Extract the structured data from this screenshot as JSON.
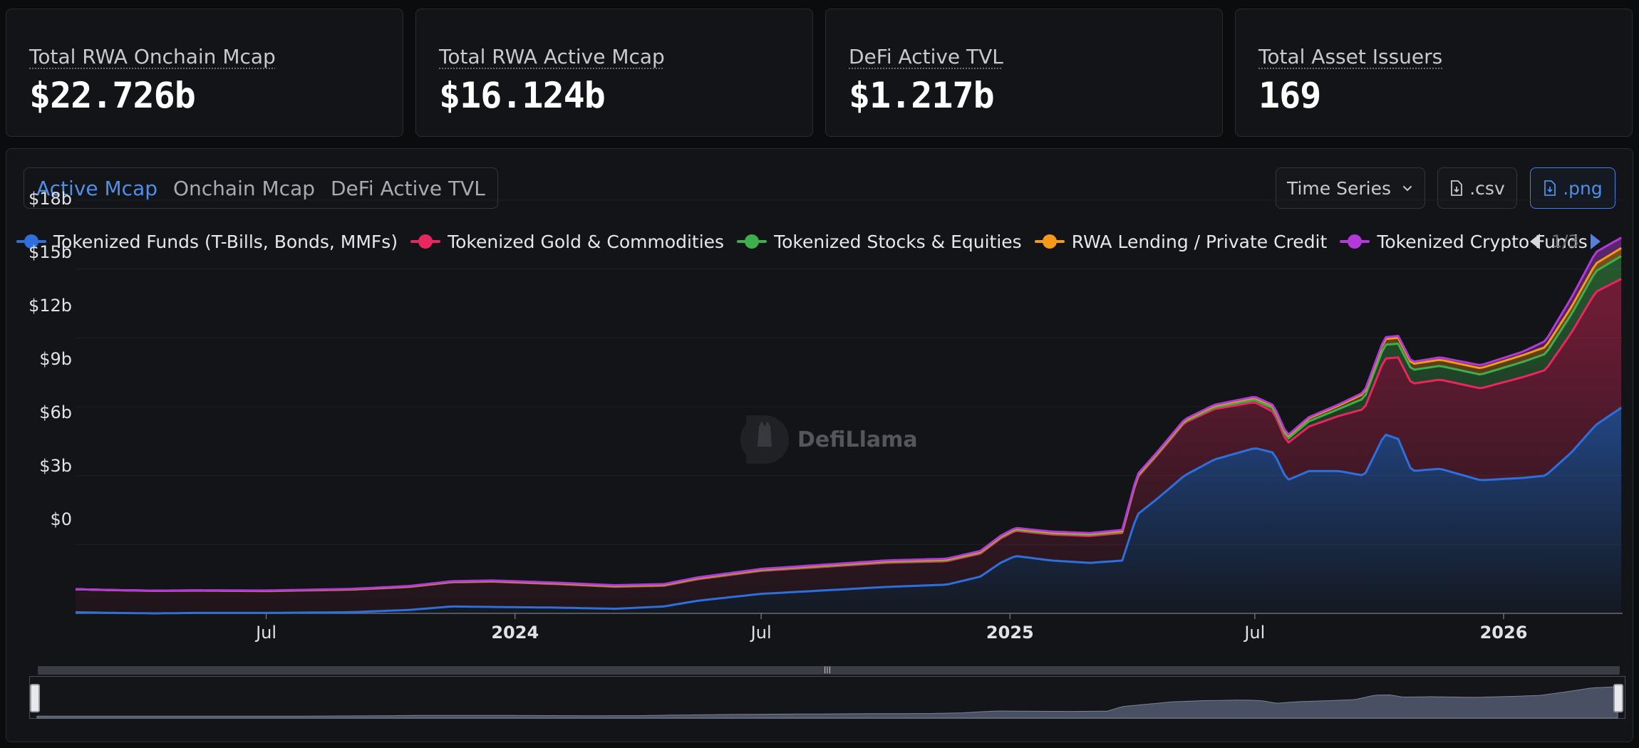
{
  "stats": [
    {
      "label": "Total RWA Onchain Mcap",
      "value": "$22.726b"
    },
    {
      "label": "Total RWA Active Mcap",
      "value": "$16.124b"
    },
    {
      "label": "DeFi Active TVL",
      "value": "$1.217b"
    },
    {
      "label": "Total Asset Issuers",
      "value": "169"
    }
  ],
  "tabs": [
    {
      "label": "Active Mcap",
      "active": true
    },
    {
      "label": "Onchain Mcap",
      "active": false
    },
    {
      "label": "DeFi Active TVL",
      "active": false
    }
  ],
  "controls": {
    "view_select": "Time Series",
    "csv_label": ".csv",
    "png_label": ".png"
  },
  "legend": {
    "items": [
      {
        "label": "Tokenized Funds (T-Bills, Bonds, MMFs)",
        "color": "#2f6fdc"
      },
      {
        "label": "Tokenized Gold & Commodities",
        "color": "#e8275f"
      },
      {
        "label": "Tokenized Stocks & Equities",
        "color": "#3fae4d"
      },
      {
        "label": "RWA Lending / Private Credit",
        "color": "#f59a18"
      },
      {
        "label": "Tokenized Crypto Funds",
        "color": "#b33ad8"
      }
    ],
    "page": "1/3"
  },
  "watermark": "DefiLlama",
  "chart_data": {
    "type": "area",
    "stacked": true,
    "y_ticks": [
      "$18b",
      "$15b",
      "$12b",
      "$9b",
      "$6b",
      "$3b",
      "$0"
    ],
    "ylim": [
      0,
      18
    ],
    "y_unit": "billion USD",
    "x_ticks": [
      {
        "label": "Jul",
        "date": "2023-07-01",
        "bold": false
      },
      {
        "label": "2024",
        "date": "2024-01-01",
        "bold": true
      },
      {
        "label": "Jul",
        "date": "2024-07-01",
        "bold": false
      },
      {
        "label": "2025",
        "date": "2025-01-01",
        "bold": true
      },
      {
        "label": "Jul",
        "date": "2025-07-01",
        "bold": false
      },
      {
        "label": "2026",
        "date": "2026-01-01",
        "bold": true
      }
    ],
    "xlim": [
      "2023-02-10",
      "2026-03-30"
    ],
    "grid": true,
    "legend_position": "top",
    "series": [
      {
        "name": "Tokenized Funds (T-Bills, Bonds, MMFs)",
        "color": "#2f6fdc",
        "points": [
          [
            "2023-02-10",
            0.05
          ],
          [
            "2023-03-10",
            0.02
          ],
          [
            "2023-04-10",
            0.0
          ],
          [
            "2023-05-10",
            0.02
          ],
          [
            "2023-07-01",
            0.02
          ],
          [
            "2023-09-01",
            0.05
          ],
          [
            "2023-10-15",
            0.15
          ],
          [
            "2023-11-15",
            0.3
          ],
          [
            "2023-12-15",
            0.28
          ],
          [
            "2024-02-01",
            0.25
          ],
          [
            "2024-03-15",
            0.2
          ],
          [
            "2024-04-20",
            0.3
          ],
          [
            "2024-05-15",
            0.55
          ],
          [
            "2024-07-01",
            0.85
          ],
          [
            "2024-08-01",
            0.95
          ],
          [
            "2024-09-01",
            1.05
          ],
          [
            "2024-10-01",
            1.15
          ],
          [
            "2024-11-15",
            1.25
          ],
          [
            "2024-12-10",
            1.6
          ],
          [
            "2024-12-25",
            2.2
          ],
          [
            "2025-01-05",
            2.5
          ],
          [
            "2025-02-01",
            2.3
          ],
          [
            "2025-03-01",
            2.2
          ],
          [
            "2025-03-25",
            2.3
          ],
          [
            "2025-04-05",
            4.3
          ],
          [
            "2025-04-20",
            5.0
          ],
          [
            "2025-05-10",
            6.0
          ],
          [
            "2025-06-01",
            6.7
          ],
          [
            "2025-07-01",
            7.2
          ],
          [
            "2025-07-15",
            7.0
          ],
          [
            "2025-07-25",
            5.8
          ],
          [
            "2025-08-10",
            6.2
          ],
          [
            "2025-09-01",
            6.2
          ],
          [
            "2025-09-20",
            6.0
          ],
          [
            "2025-10-05",
            7.8
          ],
          [
            "2025-10-15",
            7.6
          ],
          [
            "2025-10-25",
            6.2
          ],
          [
            "2025-11-15",
            6.3
          ],
          [
            "2025-12-15",
            5.8
          ],
          [
            "2026-01-15",
            5.9
          ],
          [
            "2026-02-01",
            6.0
          ],
          [
            "2026-02-20",
            7.0
          ],
          [
            "2026-03-10",
            8.2
          ],
          [
            "2026-03-30",
            9.0
          ]
        ]
      },
      {
        "name": "Tokenized Gold & Commodities",
        "color": "#e8275f",
        "points": [
          [
            "2023-02-10",
            1.0
          ],
          [
            "2023-07-01",
            0.95
          ],
          [
            "2023-10-15",
            1.0
          ],
          [
            "2023-12-15",
            1.1
          ],
          [
            "2024-04-20",
            0.9
          ],
          [
            "2024-07-01",
            1.0
          ],
          [
            "2024-10-01",
            1.05
          ],
          [
            "2024-12-10",
            1.0
          ],
          [
            "2025-01-05",
            1.1
          ],
          [
            "2025-03-25",
            1.2
          ],
          [
            "2025-04-05",
            1.6
          ],
          [
            "2025-05-10",
            2.3
          ],
          [
            "2025-06-01",
            2.2
          ],
          [
            "2025-07-01",
            2.0
          ],
          [
            "2025-07-25",
            1.6
          ],
          [
            "2025-09-01",
            2.4
          ],
          [
            "2025-10-05",
            3.3
          ],
          [
            "2025-10-25",
            3.8
          ],
          [
            "2025-12-15",
            4.0
          ],
          [
            "2026-02-01",
            4.6
          ],
          [
            "2026-03-10",
            5.8
          ],
          [
            "2026-03-30",
            5.6
          ]
        ]
      },
      {
        "name": "Tokenized Stocks & Equities",
        "color": "#3fae4d",
        "points": [
          [
            "2023-02-10",
            0.0
          ],
          [
            "2025-05-10",
            0.05
          ],
          [
            "2025-07-01",
            0.1
          ],
          [
            "2025-09-01",
            0.3
          ],
          [
            "2025-10-05",
            0.6
          ],
          [
            "2025-12-15",
            0.6
          ],
          [
            "2026-02-01",
            0.7
          ],
          [
            "2026-03-10",
            0.9
          ],
          [
            "2026-03-30",
            1.0
          ]
        ]
      },
      {
        "name": "RWA Lending / Private Credit",
        "color": "#f59a18",
        "points": [
          [
            "2023-02-10",
            0.0
          ],
          [
            "2025-05-10",
            0.05
          ],
          [
            "2025-09-01",
            0.15
          ],
          [
            "2025-10-05",
            0.25
          ],
          [
            "2026-02-01",
            0.3
          ],
          [
            "2026-03-30",
            0.35
          ]
        ]
      },
      {
        "name": "Tokenized Crypto Funds",
        "color": "#b33ad8",
        "points": [
          [
            "2023-02-10",
            0.0
          ],
          [
            "2025-09-01",
            0.05
          ],
          [
            "2026-01-15",
            0.15
          ],
          [
            "2026-02-20",
            0.4
          ],
          [
            "2026-03-10",
            0.5
          ],
          [
            "2026-03-30",
            0.45
          ]
        ]
      }
    ]
  }
}
